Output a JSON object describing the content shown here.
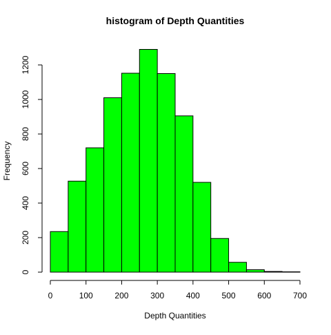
{
  "chart_data": {
    "type": "bar",
    "title": "histogram of Depth Quantities",
    "xlabel": "Depth Quantities",
    "ylabel": "Frequency",
    "bin_edges": [
      0,
      50,
      100,
      150,
      200,
      250,
      300,
      350,
      400,
      450,
      500,
      550,
      600,
      650,
      700
    ],
    "values": [
      235,
      527,
      720,
      1010,
      1152,
      1290,
      1150,
      905,
      520,
      195,
      57,
      14,
      4,
      2
    ],
    "xlim": [
      0,
      700
    ],
    "ylim": [
      0,
      1200
    ],
    "x_ticks": [
      0,
      100,
      200,
      300,
      400,
      500,
      600,
      700
    ],
    "y_ticks": [
      0,
      200,
      400,
      600,
      800,
      1000,
      1200
    ],
    "grid": false,
    "bar_color": "#00ff00",
    "bar_edge_color": "#000000"
  }
}
